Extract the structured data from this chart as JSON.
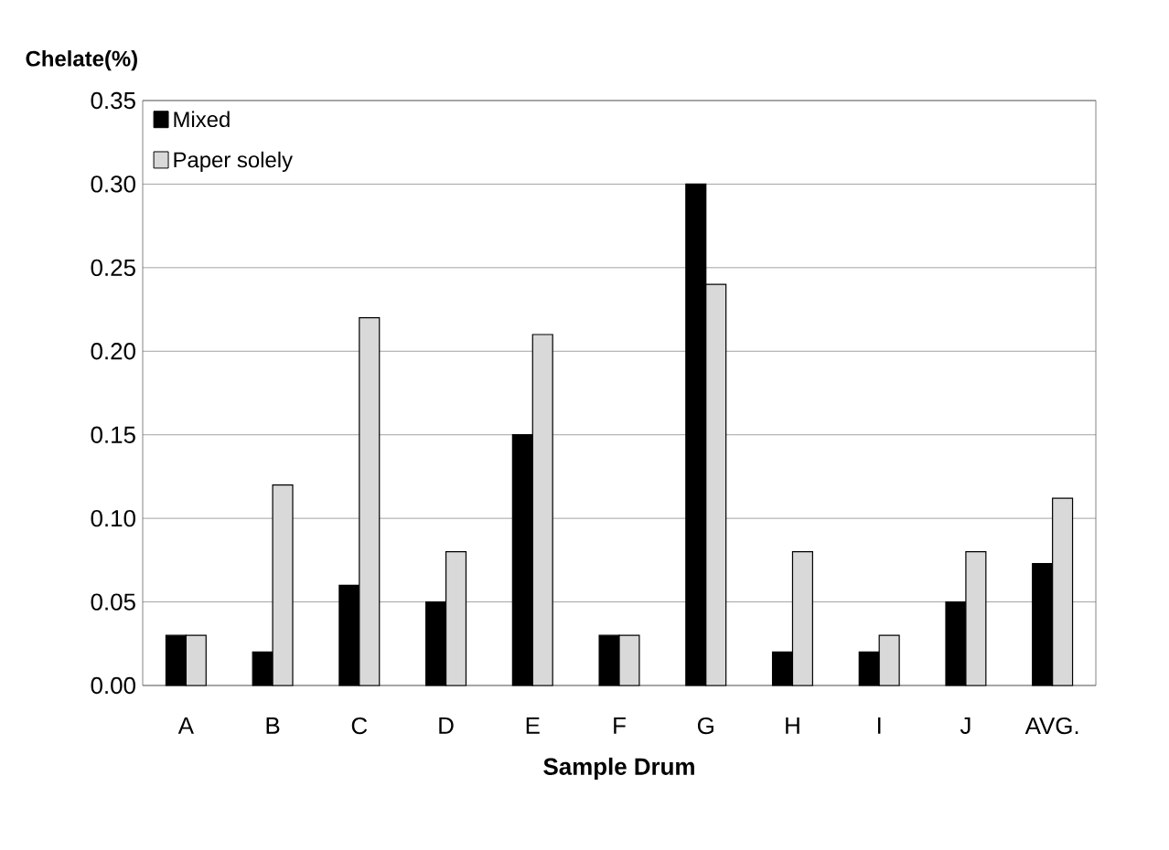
{
  "chart_data": {
    "type": "bar",
    "xlabel": "Sample Drum",
    "ylabel": "Chelate(%)",
    "categories": [
      "A",
      "B",
      "C",
      "D",
      "E",
      "F",
      "G",
      "H",
      "I",
      "J",
      "AVG."
    ],
    "series": [
      {
        "name": "Mixed",
        "color": "#000000",
        "values": [
          0.03,
          0.02,
          0.06,
          0.05,
          0.15,
          0.03,
          0.3,
          0.02,
          0.02,
          0.05,
          0.073
        ]
      },
      {
        "name": "Paper solely",
        "color": "#d9d9d9",
        "values": [
          0.03,
          0.12,
          0.22,
          0.08,
          0.21,
          0.03,
          0.24,
          0.08,
          0.03,
          0.08,
          0.112
        ]
      }
    ],
    "ylim": [
      0,
      0.35
    ],
    "yticks": [
      {
        "value": 0,
        "label": "0.00"
      },
      {
        "value": 0.05,
        "label": "0.05"
      },
      {
        "value": 0.1,
        "label": "0.10"
      },
      {
        "value": 0.15,
        "label": "0.15"
      },
      {
        "value": 0.2,
        "label": "0.20"
      },
      {
        "value": 0.25,
        "label": "0.25"
      },
      {
        "value": 0.3,
        "label": "0.30"
      },
      {
        "value": 0.35,
        "label": "0.35"
      }
    ],
    "grid": "y",
    "legend": "top left"
  }
}
